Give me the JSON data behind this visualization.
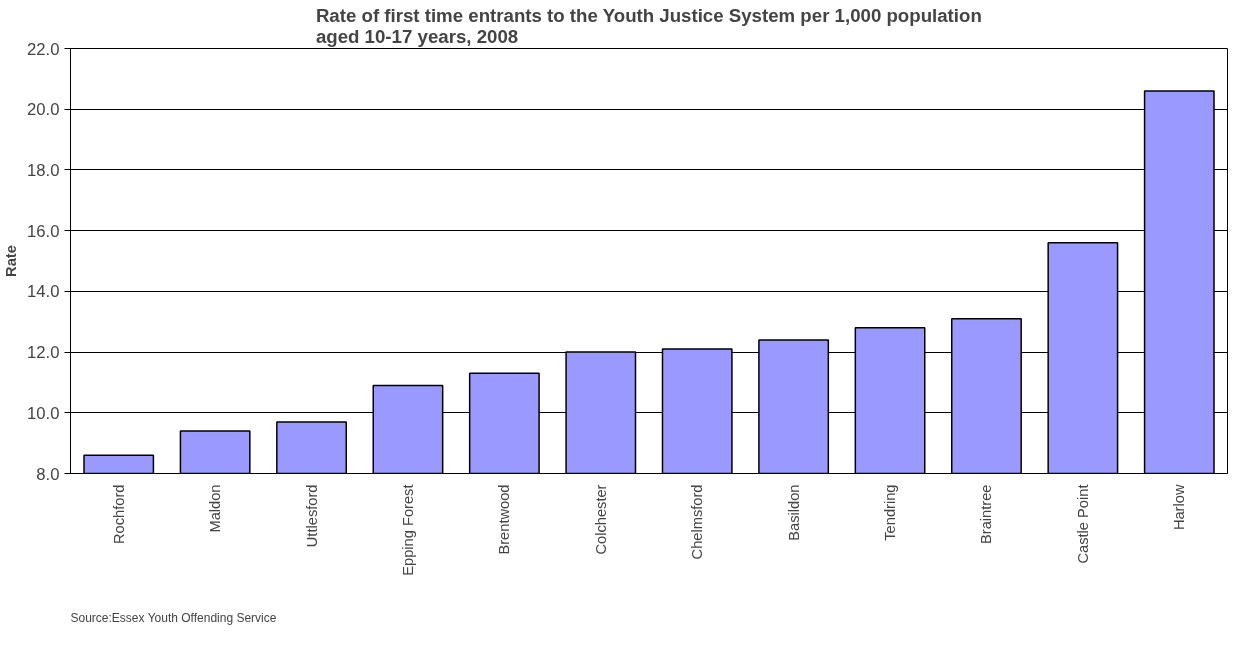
{
  "chart_data": {
    "type": "bar",
    "title": "Rate of first time entrants to the Youth Justice System per 1,000 population aged 10-17 years,  2008",
    "ylabel": "Rate",
    "categories": [
      "Rochford",
      "Maldon",
      "Uttlesford",
      "Epping Forest",
      "Brentwood",
      "Colchester",
      "Chelmsford",
      "Basildon",
      "Tendring",
      "Braintree",
      "Castle Point",
      "Harlow"
    ],
    "values": [
      8.6,
      9.4,
      9.7,
      10.9,
      11.3,
      12.0,
      12.1,
      12.4,
      12.8,
      13.1,
      15.6,
      20.6
    ],
    "color": "#9999ff",
    "ylim": [
      8,
      22
    ],
    "yticks": [
      {
        "value": 8,
        "label": "8.0"
      },
      {
        "value": 10,
        "label": "10.0"
      },
      {
        "value": 12,
        "label": "12.0"
      },
      {
        "value": 14,
        "label": "14.0"
      },
      {
        "value": 16,
        "label": "16.0"
      },
      {
        "value": 18,
        "label": "18.0"
      },
      {
        "value": 20,
        "label": "20.0"
      },
      {
        "value": 22,
        "label": "22.0"
      }
    ],
    "grid": "y",
    "annotations": [
      "Source:Essex Youth Offending Service"
    ]
  }
}
